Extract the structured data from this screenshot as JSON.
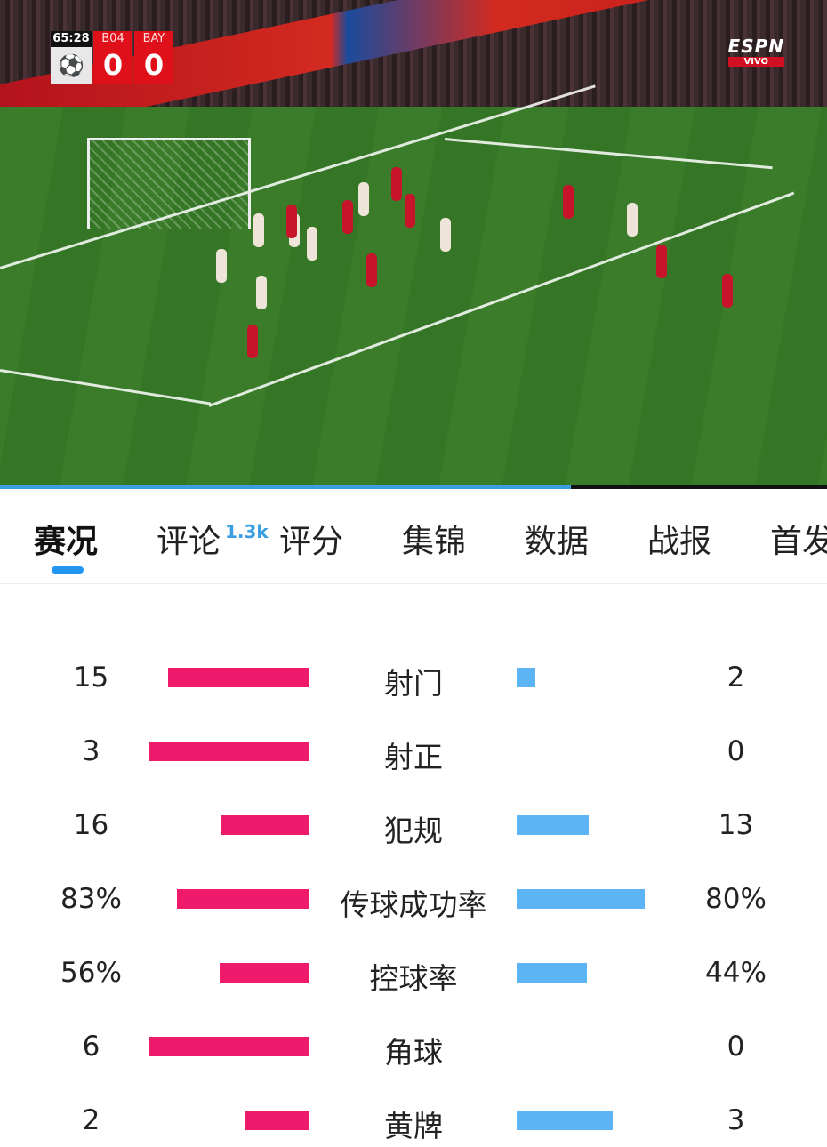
{
  "video": {
    "scoreboard": {
      "clock": "65:28",
      "home_abbr": "B04",
      "away_abbr": "BAY",
      "home_score": "0",
      "away_score": "0"
    },
    "broadcaster": {
      "logo": "ESPN",
      "live_label": "VIVO"
    },
    "progress_percent": 69
  },
  "tabs": [
    {
      "label": "赛况",
      "active": true
    },
    {
      "label": "评论",
      "badge": "1.3k"
    },
    {
      "label": "评分"
    },
    {
      "label": "集锦"
    },
    {
      "label": "数据"
    },
    {
      "label": "战报"
    },
    {
      "label": "首发"
    }
  ],
  "colors": {
    "home": "#f01a6c",
    "away": "#5db4f5",
    "accent": "#2196f3"
  },
  "stats": [
    {
      "label": "射门",
      "home": "15",
      "away": "2"
    },
    {
      "label": "射正",
      "home": "3",
      "away": "0"
    },
    {
      "label": "犯规",
      "home": "16",
      "away": "13"
    },
    {
      "label": "传球成功率",
      "home": "83%",
      "away": "80%"
    },
    {
      "label": "控球率",
      "home": "56%",
      "away": "44%"
    },
    {
      "label": "角球",
      "home": "6",
      "away": "0"
    },
    {
      "label": "黄牌",
      "home": "2",
      "away": "3"
    }
  ]
}
